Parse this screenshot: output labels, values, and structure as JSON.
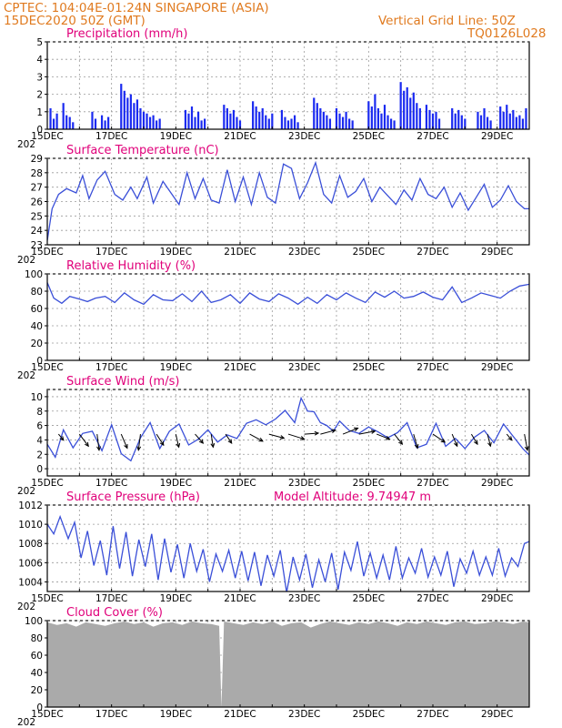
{
  "header": {
    "line1": "CPTEC:   104:04E-01:24N   SINGAPORE (ASIA)",
    "line2": "15DEC2020 50Z (GMT)",
    "right1": "Vertical Grid Line: 50Z",
    "right2": "TQ0126L028"
  },
  "colors": {
    "line": "#3a4fd8",
    "bar": "#1a2af0",
    "cloud": "#aaaaaa",
    "title": "#e0007a",
    "header": "#e07a1f"
  },
  "xaxis": {
    "labels": [
      "15DEC",
      "17DEC",
      "19DEC",
      "21DEC",
      "23DEC",
      "25DEC",
      "27DEC",
      "29DEC"
    ],
    "year_fragment": "202",
    "x_start": 0,
    "x_end": 15,
    "label_step": 2
  },
  "chart_data": [
    {
      "id": "precip",
      "type": "bar",
      "title": "Precipitation (mm/h)",
      "ylim": [
        0,
        5
      ],
      "yticks": [
        0,
        1,
        2,
        3,
        4,
        5
      ],
      "x_days": [
        0.1,
        0.2,
        0.3,
        0.5,
        0.6,
        0.7,
        0.8,
        1.4,
        1.5,
        1.7,
        1.8,
        1.9,
        2.3,
        2.4,
        2.5,
        2.6,
        2.7,
        2.8,
        2.9,
        3.0,
        3.1,
        3.2,
        3.3,
        3.4,
        3.5,
        4.3,
        4.4,
        4.5,
        4.6,
        4.7,
        4.8,
        4.9,
        5.5,
        5.6,
        5.7,
        5.8,
        5.9,
        6.0,
        6.4,
        6.5,
        6.6,
        6.7,
        6.8,
        6.9,
        7.0,
        7.3,
        7.4,
        7.5,
        7.6,
        7.7,
        7.8,
        8.3,
        8.4,
        8.5,
        8.6,
        8.7,
        8.8,
        9.0,
        9.1,
        9.2,
        9.3,
        9.4,
        9.5,
        10.0,
        10.1,
        10.2,
        10.3,
        10.4,
        10.5,
        10.6,
        10.7,
        10.8,
        11.0,
        11.1,
        11.2,
        11.3,
        11.4,
        11.5,
        11.6,
        11.8,
        11.9,
        12.0,
        12.1,
        12.2,
        12.6,
        12.7,
        12.8,
        12.9,
        13.0,
        13.4,
        13.5,
        13.6,
        13.7,
        13.8,
        14.1,
        14.2,
        14.3,
        14.4,
        14.5,
        14.6,
        14.7,
        14.8,
        14.9
      ],
      "values": [
        1.2,
        0.6,
        0.9,
        1.5,
        0.8,
        0.7,
        0.4,
        1.0,
        0.6,
        0.8,
        0.5,
        0.7,
        2.6,
        2.2,
        1.8,
        2.0,
        1.5,
        1.7,
        1.2,
        1.0,
        0.9,
        0.7,
        0.8,
        0.5,
        0.6,
        1.1,
        0.9,
        1.3,
        0.7,
        1.0,
        0.5,
        0.6,
        1.4,
        1.2,
        0.9,
        1.1,
        0.7,
        0.5,
        1.6,
        1.3,
        1.0,
        1.2,
        0.8,
        0.6,
        0.9,
        1.1,
        0.7,
        0.5,
        0.6,
        0.8,
        0.4,
        1.8,
        1.5,
        1.2,
        1.0,
        0.8,
        0.6,
        1.2,
        0.9,
        0.7,
        1.0,
        0.6,
        0.5,
        1.6,
        1.3,
        2.0,
        1.2,
        0.9,
        1.4,
        0.8,
        0.6,
        0.5,
        2.7,
        2.2,
        2.4,
        1.8,
        2.1,
        1.5,
        1.2,
        1.4,
        1.1,
        0.9,
        1.0,
        0.6,
        1.2,
        0.9,
        1.1,
        0.8,
        0.6,
        1.0,
        0.8,
        1.2,
        0.7,
        0.5,
        1.3,
        1.0,
        1.4,
        0.9,
        1.1,
        0.7,
        0.8,
        0.6,
        1.2
      ]
    },
    {
      "id": "temp",
      "type": "line",
      "title": "Surface Temperature (nC)",
      "ylim": [
        23,
        29
      ],
      "yticks": [
        23,
        24,
        25,
        26,
        27,
        28,
        29
      ],
      "x": [
        0,
        0.15,
        0.35,
        0.6,
        0.9,
        1.1,
        1.3,
        1.55,
        1.8,
        2.1,
        2.35,
        2.6,
        2.8,
        3.1,
        3.3,
        3.6,
        3.85,
        4.1,
        4.35,
        4.6,
        4.85,
        5.1,
        5.35,
        5.6,
        5.85,
        6.1,
        6.35,
        6.6,
        6.85,
        7.1,
        7.35,
        7.6,
        7.85,
        8.1,
        8.35,
        8.6,
        8.85,
        9.1,
        9.35,
        9.6,
        9.85,
        10.1,
        10.35,
        10.6,
        10.85,
        11.1,
        11.35,
        11.6,
        11.85,
        12.1,
        12.35,
        12.6,
        12.85,
        13.1,
        13.35,
        13.6,
        13.85,
        14.1,
        14.35,
        14.6,
        14.85,
        15.0
      ],
      "y": [
        23.3,
        25.5,
        26.5,
        26.9,
        26.6,
        27.8,
        26.2,
        27.5,
        28.1,
        26.5,
        26.1,
        27.0,
        26.2,
        27.7,
        25.9,
        27.4,
        26.6,
        25.8,
        28.0,
        26.2,
        27.6,
        26.1,
        25.9,
        28.2,
        26.0,
        27.7,
        25.8,
        28.0,
        26.3,
        25.9,
        28.6,
        28.3,
        26.2,
        27.3,
        28.7,
        26.5,
        25.9,
        27.8,
        26.3,
        26.7,
        27.6,
        26.0,
        27.0,
        26.4,
        25.8,
        26.8,
        26.1,
        27.6,
        26.5,
        26.2,
        27.0,
        25.6,
        26.6,
        25.4,
        26.3,
        27.2,
        25.6,
        26.1,
        27.1,
        26.0,
        25.5,
        25.5
      ]
    },
    {
      "id": "rh",
      "type": "line",
      "title": "Relative Humidity (%)",
      "ylim": [
        0,
        100
      ],
      "yticks": [
        0,
        20,
        40,
        60,
        80,
        100
      ],
      "x": [
        0,
        0.2,
        0.45,
        0.7,
        1.0,
        1.25,
        1.5,
        1.8,
        2.1,
        2.4,
        2.7,
        3.0,
        3.3,
        3.6,
        3.9,
        4.2,
        4.5,
        4.8,
        5.1,
        5.4,
        5.7,
        6.0,
        6.3,
        6.6,
        6.9,
        7.2,
        7.5,
        7.8,
        8.1,
        8.4,
        8.7,
        9.0,
        9.3,
        9.6,
        9.9,
        10.2,
        10.5,
        10.8,
        11.1,
        11.4,
        11.7,
        12.0,
        12.3,
        12.6,
        12.9,
        13.2,
        13.5,
        13.8,
        14.1,
        14.4,
        14.7,
        15.0
      ],
      "y": [
        90,
        72,
        66,
        74,
        71,
        68,
        72,
        74,
        67,
        78,
        70,
        65,
        76,
        70,
        69,
        77,
        68,
        80,
        67,
        70,
        76,
        66,
        78,
        71,
        68,
        77,
        72,
        65,
        73,
        66,
        76,
        70,
        78,
        72,
        67,
        79,
        73,
        80,
        72,
        74,
        79,
        73,
        70,
        85,
        67,
        72,
        78,
        75,
        72,
        80,
        86,
        88
      ]
    },
    {
      "id": "wind",
      "type": "line",
      "title": "Surface Wind (m/s)",
      "ylim": [
        -1,
        11
      ],
      "yticks": [
        0,
        2,
        4,
        6,
        8,
        10
      ],
      "x": [
        0,
        0.25,
        0.5,
        0.8,
        1.1,
        1.4,
        1.7,
        2.0,
        2.3,
        2.6,
        2.9,
        3.2,
        3.5,
        3.8,
        4.1,
        4.4,
        4.7,
        5.0,
        5.3,
        5.6,
        5.9,
        6.2,
        6.5,
        6.8,
        7.1,
        7.4,
        7.7,
        7.9,
        8.1,
        8.3,
        8.5,
        8.7,
        8.9,
        9.1,
        9.4,
        9.7,
        10.0,
        10.3,
        10.6,
        10.9,
        11.2,
        11.5,
        11.8,
        12.1,
        12.4,
        12.7,
        13.0,
        13.3,
        13.6,
        13.9,
        14.2,
        14.5,
        14.8,
        15.0
      ],
      "y": [
        3.4,
        1.6,
        5.4,
        2.9,
        4.9,
        5.2,
        2.5,
        6.1,
        2.1,
        1.1,
        4.3,
        6.4,
        2.8,
        5.2,
        6.2,
        3.3,
        4.1,
        5.4,
        3.7,
        4.7,
        4.2,
        6.3,
        6.8,
        6.1,
        6.9,
        8.1,
        6.4,
        9.8,
        8.0,
        7.9,
        6.4,
        6.0,
        5.2,
        6.6,
        5.3,
        4.9,
        5.8,
        5.1,
        4.3,
        5.0,
        6.4,
        2.9,
        3.4,
        6.3,
        3.1,
        4.2,
        2.8,
        4.4,
        5.3,
        3.6,
        6.2,
        4.5,
        2.8,
        1.9
      ],
      "vector_x": [
        0.35,
        1.0,
        1.55,
        2.3,
        2.9,
        3.4,
        4.0,
        4.6,
        5.1,
        5.55,
        6.3,
        6.9,
        7.5,
        8.0,
        8.5,
        9.2,
        9.7,
        10.25,
        10.8,
        11.4,
        12.0,
        12.6,
        13.2,
        13.7,
        14.3,
        14.85
      ],
      "vector_u": [
        0.5,
        0.9,
        0.2,
        0.6,
        -0.2,
        0.7,
        0.3,
        0.8,
        0.2,
        0.6,
        1.3,
        1.5,
        1.6,
        1.4,
        1.5,
        1.5,
        1.6,
        1.3,
        0.8,
        0.4,
        1.2,
        0.5,
        0.6,
        0.3,
        0.5,
        0.3
      ],
      "vector_v": [
        -0.6,
        -1.2,
        -1.6,
        -1.4,
        -1.6,
        -1.1,
        -1.3,
        -0.9,
        -1.3,
        -0.9,
        -0.7,
        -0.4,
        -0.5,
        0.1,
        0.4,
        0.6,
        0.3,
        -0.5,
        -1.0,
        -1.4,
        -0.8,
        -1.2,
        -1.0,
        -1.2,
        -0.6,
        -1.6
      ]
    },
    {
      "id": "pres",
      "type": "line",
      "title": "Surface Pressure (hPa)",
      "annotation": "Model Altitude: 9.74947 m",
      "ylim": [
        1003,
        1012
      ],
      "yticks": [
        1004,
        1006,
        1008,
        1010,
        1012
      ],
      "x": [
        0,
        0.2,
        0.4,
        0.65,
        0.85,
        1.05,
        1.25,
        1.45,
        1.65,
        1.85,
        2.05,
        2.25,
        2.45,
        2.65,
        2.85,
        3.05,
        3.25,
        3.45,
        3.65,
        3.85,
        4.05,
        4.25,
        4.45,
        4.65,
        4.85,
        5.05,
        5.25,
        5.45,
        5.65,
        5.85,
        6.05,
        6.25,
        6.45,
        6.65,
        6.85,
        7.05,
        7.25,
        7.45,
        7.65,
        7.85,
        8.05,
        8.25,
        8.45,
        8.65,
        8.85,
        9.05,
        9.25,
        9.45,
        9.65,
        9.85,
        10.05,
        10.25,
        10.45,
        10.65,
        10.85,
        11.05,
        11.25,
        11.45,
        11.65,
        11.85,
        12.05,
        12.25,
        12.45,
        12.65,
        12.85,
        13.05,
        13.25,
        13.45,
        13.65,
        13.85,
        14.05,
        14.25,
        14.45,
        14.65,
        14.85,
        15.0
      ],
      "y": [
        1010,
        1009,
        1010.8,
        1008.5,
        1010.2,
        1006.5,
        1009.3,
        1005.7,
        1008.3,
        1004.7,
        1009.8,
        1005.4,
        1009.2,
        1004.6,
        1008.4,
        1005.6,
        1009.0,
        1004.2,
        1008.5,
        1005.0,
        1007.9,
        1004.4,
        1008.0,
        1005.1,
        1007.4,
        1004.0,
        1006.9,
        1005.1,
        1007.3,
        1004.4,
        1007.2,
        1004.1,
        1007.1,
        1003.6,
        1006.8,
        1004.6,
        1007.3,
        1002.9,
        1006.6,
        1004.2,
        1006.9,
        1003.4,
        1006.3,
        1004.0,
        1007.0,
        1003.2,
        1007.1,
        1005.2,
        1008.2,
        1004.6,
        1007.0,
        1004.4,
        1006.8,
        1004.2,
        1007.7,
        1004.4,
        1006.5,
        1004.9,
        1007.5,
        1004.5,
        1006.6,
        1004.7,
        1007.2,
        1003.5,
        1006.4,
        1004.9,
        1007.2,
        1004.7,
        1006.6,
        1004.7,
        1007.5,
        1004.6,
        1006.5,
        1005.6,
        1008.0,
        1008.2
      ]
    },
    {
      "id": "cloud",
      "type": "area",
      "title": "Cloud Cover (%)",
      "ylim": [
        0,
        100
      ],
      "yticks": [
        0,
        20,
        40,
        60,
        80,
        100
      ],
      "x": [
        0,
        0.3,
        0.6,
        0.9,
        1.2,
        1.5,
        1.8,
        2.1,
        2.4,
        2.7,
        3.0,
        3.3,
        3.6,
        3.9,
        4.2,
        4.5,
        4.8,
        5.1,
        5.35,
        5.42,
        5.5,
        5.8,
        6.1,
        6.4,
        6.7,
        7.0,
        7.3,
        7.6,
        7.9,
        8.2,
        8.5,
        8.8,
        9.1,
        9.4,
        9.7,
        10.0,
        10.3,
        10.6,
        10.9,
        11.2,
        11.5,
        11.8,
        12.1,
        12.4,
        12.7,
        13.0,
        13.3,
        13.6,
        13.9,
        14.2,
        14.5,
        14.8,
        15.0
      ],
      "y": [
        98,
        95,
        97,
        93,
        98,
        96,
        94,
        97,
        99,
        96,
        98,
        93,
        97,
        98,
        95,
        99,
        97,
        96,
        94,
        0,
        99,
        97,
        95,
        98,
        96,
        99,
        94,
        97,
        98,
        92,
        96,
        99,
        97,
        95,
        98,
        96,
        99,
        97,
        94,
        98,
        96,
        99,
        97,
        95,
        98,
        99,
        96,
        97,
        99,
        98,
        96,
        99,
        98
      ]
    }
  ]
}
